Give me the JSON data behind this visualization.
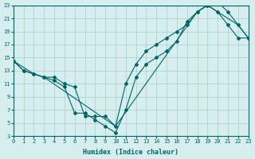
{
  "xlabel": "Humidex (Indice chaleur)",
  "ylabel": "",
  "background_color": "#d6eeee",
  "grid_color": "#aacccc",
  "line_color": "#006666",
  "xlim": [
    0,
    23
  ],
  "ylim": [
    3,
    23
  ],
  "xticks": [
    0,
    1,
    2,
    3,
    4,
    5,
    6,
    7,
    8,
    9,
    10,
    11,
    12,
    13,
    14,
    15,
    16,
    17,
    18,
    19,
    20,
    21,
    22,
    23
  ],
  "yticks": [
    3,
    5,
    7,
    9,
    11,
    13,
    15,
    17,
    19,
    21,
    23
  ],
  "series": [
    {
      "x": [
        0,
        1,
        2,
        3,
        4,
        5,
        6,
        7,
        8,
        9,
        10,
        11,
        12,
        13,
        14,
        15,
        16,
        17,
        18,
        19,
        20,
        21,
        22,
        23
      ],
      "y": [
        14.5,
        13,
        12.5,
        12,
        11.5,
        10.5,
        6.5,
        6.5,
        5.5,
        4.5,
        3.5,
        7,
        12,
        14,
        15,
        16,
        17.5,
        20.5,
        22,
        23,
        22,
        20,
        18,
        18
      ]
    },
    {
      "x": [
        0,
        1,
        2,
        3,
        4,
        5,
        6,
        7,
        8,
        9,
        10,
        11,
        12,
        13,
        14,
        15,
        16,
        17,
        18,
        19,
        20,
        21,
        22,
        23
      ],
      "y": [
        14.5,
        13,
        12.5,
        12,
        12,
        11,
        10.5,
        6,
        6,
        6,
        4.5,
        11,
        14,
        16,
        17,
        18,
        19,
        20,
        22,
        23,
        23.5,
        22,
        20,
        18
      ]
    },
    {
      "x": [
        0,
        2,
        3,
        10,
        18,
        19,
        20,
        22,
        23
      ],
      "y": [
        14.5,
        12.5,
        12,
        4.5,
        22,
        23,
        22,
        20,
        18
      ]
    }
  ]
}
